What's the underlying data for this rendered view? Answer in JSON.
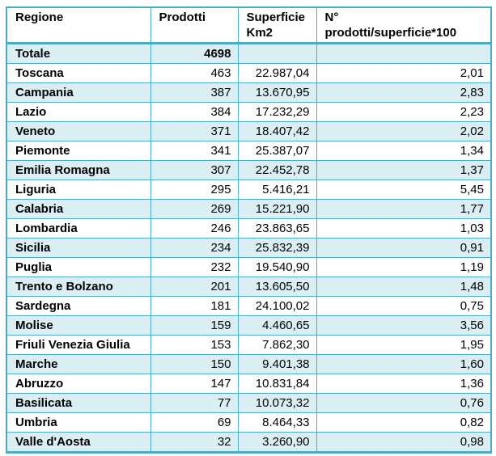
{
  "chart_data": {
    "type": "table",
    "columns": [
      "Regione",
      "Prodotti",
      "Superficie\nKm2",
      "N°\nprodotti/superficie*100"
    ],
    "total_row": {
      "regione": "Totale",
      "prodotti": "4698",
      "superficie": "",
      "ratio": ""
    },
    "rows": [
      {
        "regione": "Toscana",
        "prodotti": "463",
        "superficie": "22.987,04",
        "ratio": "2,01"
      },
      {
        "regione": "Campania",
        "prodotti": "387",
        "superficie": "13.670,95",
        "ratio": "2,83"
      },
      {
        "regione": "Lazio",
        "prodotti": "384",
        "superficie": "17.232,29",
        "ratio": "2,23"
      },
      {
        "regione": "Veneto",
        "prodotti": "371",
        "superficie": "18.407,42",
        "ratio": "2,02"
      },
      {
        "regione": "Piemonte",
        "prodotti": "341",
        "superficie": "25.387,07",
        "ratio": "1,34"
      },
      {
        "regione": "Emilia Romagna",
        "prodotti": "307",
        "superficie": "22.452,78",
        "ratio": "1,37"
      },
      {
        "regione": "Liguria",
        "prodotti": "295",
        "superficie": "5.416,21",
        "ratio": "5,45"
      },
      {
        "regione": "Calabria",
        "prodotti": "269",
        "superficie": "15.221,90",
        "ratio": "1,77"
      },
      {
        "regione": "Lombardia",
        "prodotti": "246",
        "superficie": "23.863,65",
        "ratio": "1,03"
      },
      {
        "regione": "Sicilia",
        "prodotti": "234",
        "superficie": "25.832,39",
        "ratio": "0,91"
      },
      {
        "regione": "Puglia",
        "prodotti": "232",
        "superficie": "19.540,90",
        "ratio": "1,19"
      },
      {
        "regione": "Trento e Bolzano",
        "prodotti": "201",
        "superficie": "13.605,50",
        "ratio": "1,48"
      },
      {
        "regione": "Sardegna",
        "prodotti": "181",
        "superficie": "24.100,02",
        "ratio": "0,75"
      },
      {
        "regione": "Molise",
        "prodotti": "159",
        "superficie": "4.460,65",
        "ratio": "3,56"
      },
      {
        "regione": "Friuli Venezia Giulia",
        "prodotti": "153",
        "superficie": "7.862,30",
        "ratio": "1,95"
      },
      {
        "regione": "Marche",
        "prodotti": "150",
        "superficie": "9.401,38",
        "ratio": "1,60"
      },
      {
        "regione": "Abruzzo",
        "prodotti": "147",
        "superficie": "10.831,84",
        "ratio": "1,36"
      },
      {
        "regione": "Basilicata",
        "prodotti": "77",
        "superficie": "10.073,32",
        "ratio": "0,76"
      },
      {
        "regione": "Umbria",
        "prodotti": "69",
        "superficie": "8.464,33",
        "ratio": "0,82"
      },
      {
        "regione": "Valle d'Aosta",
        "prodotti": "32",
        "superficie": "3.260,90",
        "ratio": "0,98"
      }
    ]
  },
  "colors": {
    "border": "#4BACC6",
    "row_fill": "#DAEEF3",
    "text": "#000000",
    "background": "#FFFFFF"
  }
}
